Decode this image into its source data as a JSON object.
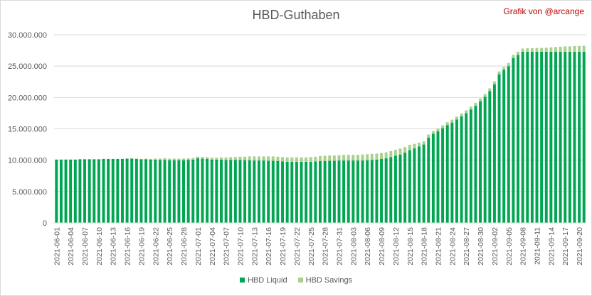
{
  "chart_data": {
    "type": "bar",
    "stacked": true,
    "title": "HBD-Guthaben",
    "credit": "Grafik von @arcange",
    "xlabel": "",
    "ylabel": "",
    "ylim": [
      0,
      30000000
    ],
    "y_ticks": [
      "0",
      "5.000.000",
      "10.000.000",
      "15.000.000",
      "20.000.000",
      "25.000.000",
      "30.000.000"
    ],
    "y_tick_values": [
      0,
      5000000,
      10000000,
      15000000,
      20000000,
      25000000,
      30000000
    ],
    "gridlines": true,
    "legend_position": "bottom",
    "categories": [
      "2021-06-01",
      "2021-06-02",
      "2021-06-03",
      "2021-06-04",
      "2021-06-05",
      "2021-06-06",
      "2021-06-07",
      "2021-06-08",
      "2021-06-09",
      "2021-06-10",
      "2021-06-11",
      "2021-06-12",
      "2021-06-13",
      "2021-06-14",
      "2021-06-15",
      "2021-06-16",
      "2021-06-17",
      "2021-06-18",
      "2021-06-19",
      "2021-06-20",
      "2021-06-21",
      "2021-06-22",
      "2021-06-23",
      "2021-06-24",
      "2021-06-25",
      "2021-06-26",
      "2021-06-27",
      "2021-06-28",
      "2021-06-29",
      "2021-06-30",
      "2021-07-01",
      "2021-07-02",
      "2021-07-03",
      "2021-07-04",
      "2021-07-05",
      "2021-07-06",
      "2021-07-07",
      "2021-07-08",
      "2021-07-09",
      "2021-07-10",
      "2021-07-11",
      "2021-07-12",
      "2021-07-13",
      "2021-07-14",
      "2021-07-15",
      "2021-07-16",
      "2021-07-17",
      "2021-07-18",
      "2021-07-19",
      "2021-07-20",
      "2021-07-21",
      "2021-07-22",
      "2021-07-23",
      "2021-07-24",
      "2021-07-25",
      "2021-07-26",
      "2021-07-27",
      "2021-07-28",
      "2021-07-29",
      "2021-07-30",
      "2021-07-31",
      "2021-08-01",
      "2021-08-02",
      "2021-08-03",
      "2021-08-04",
      "2021-08-05",
      "2021-08-06",
      "2021-08-07",
      "2021-08-08",
      "2021-08-09",
      "2021-08-10",
      "2021-08-11",
      "2021-08-12",
      "2021-08-13",
      "2021-08-14",
      "2021-08-15",
      "2021-08-16",
      "2021-08-17",
      "2021-08-18",
      "2021-08-19",
      "2021-08-20",
      "2021-08-21",
      "2021-08-22",
      "2021-08-23",
      "2021-08-24",
      "2021-08-25",
      "2021-08-26",
      "2021-08-27",
      "2021-08-28",
      "2021-08-29",
      "2021-08-30",
      "2021-08-31",
      "2021-09-01",
      "2021-09-02",
      "2021-09-03",
      "2021-09-04",
      "2021-09-05",
      "2021-09-06",
      "2021-09-07",
      "2021-09-08",
      "2021-09-09",
      "2021-09-10",
      "2021-09-11",
      "2021-09-12",
      "2021-09-13",
      "2021-09-14",
      "2021-09-15",
      "2021-09-16",
      "2021-09-17",
      "2021-09-18",
      "2021-09-19",
      "2021-09-20",
      "2021-09-21"
    ],
    "x_tick_labels_every": 3,
    "series": [
      {
        "name": "HBD Liquid",
        "color": "#00a651",
        "values": [
          10100000,
          10100000,
          10100000,
          10100000,
          10100000,
          10150000,
          10150000,
          10150000,
          10150000,
          10150000,
          10200000,
          10200000,
          10200000,
          10200000,
          10200000,
          10250000,
          10250000,
          10200000,
          10150000,
          10150000,
          10100000,
          10100000,
          10050000,
          10050000,
          10000000,
          10000000,
          10000000,
          10000000,
          10050000,
          10100000,
          10300000,
          10250000,
          10200000,
          10100000,
          10100000,
          10100000,
          10050000,
          10050000,
          10050000,
          10050000,
          10000000,
          10000000,
          9950000,
          9950000,
          9950000,
          9900000,
          9900000,
          9850000,
          9800000,
          9750000,
          9750000,
          9750000,
          9750000,
          9750000,
          9750000,
          9800000,
          9850000,
          9850000,
          9900000,
          9900000,
          9950000,
          9950000,
          9950000,
          9950000,
          9950000,
          9950000,
          10000000,
          10050000,
          10100000,
          10200000,
          10300000,
          10500000,
          10700000,
          10900000,
          11200000,
          11600000,
          11900000,
          12200000,
          12500000,
          13600000,
          14200000,
          14600000,
          15100000,
          15600000,
          16000000,
          16500000,
          17000000,
          17500000,
          18100000,
          18700000,
          19400000,
          20100000,
          21000000,
          22100000,
          23700000,
          24400000,
          25000000,
          26300000,
          26800000,
          27300000,
          27300000,
          27300000,
          27300000,
          27300000,
          27300000,
          27300000,
          27300000,
          27300000,
          27300000,
          27300000,
          27300000,
          27300000,
          27300000
        ]
      },
      {
        "name": "HBD Savings",
        "color": "#a9d18e",
        "values": [
          0,
          0,
          0,
          0,
          0,
          0,
          0,
          0,
          0,
          0,
          0,
          0,
          0,
          0,
          0,
          0,
          50000,
          50000,
          50000,
          100000,
          100000,
          150000,
          200000,
          250000,
          250000,
          250000,
          250000,
          250000,
          250000,
          250000,
          250000,
          250000,
          300000,
          300000,
          300000,
          350000,
          400000,
          450000,
          450000,
          500000,
          550000,
          600000,
          650000,
          650000,
          650000,
          700000,
          700000,
          700000,
          700000,
          700000,
          700000,
          700000,
          700000,
          700000,
          750000,
          750000,
          800000,
          850000,
          850000,
          850000,
          850000,
          900000,
          900000,
          900000,
          900000,
          950000,
          950000,
          950000,
          950000,
          950000,
          950000,
          950000,
          950000,
          950000,
          900000,
          850000,
          700000,
          600000,
          500000,
          500000,
          450000,
          450000,
          450000,
          450000,
          450000,
          450000,
          450000,
          450000,
          450000,
          450000,
          450000,
          450000,
          450000,
          450000,
          450000,
          450000,
          500000,
          500000,
          500000,
          500000,
          550000,
          550000,
          600000,
          600000,
          650000,
          700000,
          750000,
          800000,
          850000,
          850000,
          900000,
          900000,
          950000
        ]
      }
    ],
    "colors": {
      "liquid": "#00a651",
      "savings": "#a9d18e",
      "gridline": "#d9d9d9",
      "text": "#595959",
      "credit": "#c00000"
    }
  }
}
